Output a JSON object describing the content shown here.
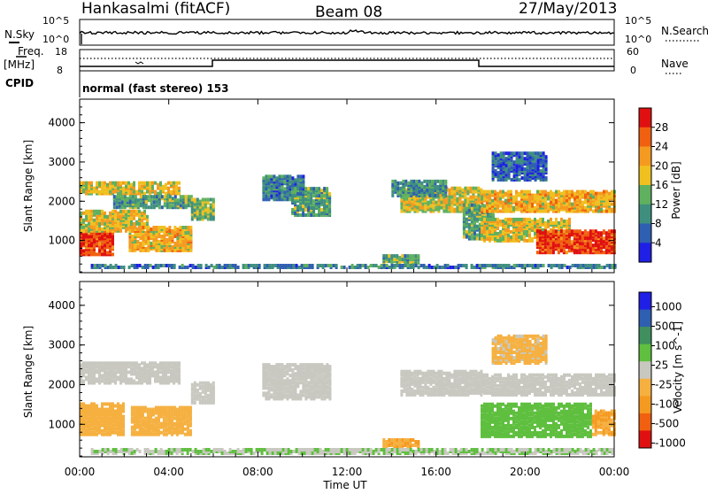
{
  "header": {
    "station": "Hankasalmi (fitACF)",
    "beam": "Beam 08",
    "date": "27/May/2013"
  },
  "top_strip": {
    "left_label": "N.Sky",
    "left_ticks": [
      "10^5",
      "10^0"
    ],
    "right_ticks": [
      "10^5",
      "10^0"
    ],
    "right_label": "N.Search"
  },
  "freq_strip": {
    "label_line1": "Freq.",
    "label_line2": "[MHz]",
    "left_ticks": [
      "18",
      "8"
    ],
    "right_ticks": [
      "60",
      "0"
    ],
    "right_label": "Nave",
    "cpid_label": "CPID"
  },
  "mode_text": "normal (fast stereo) 153",
  "x_axis": {
    "ticks": [
      "00:00",
      "04:00",
      "08:00",
      "12:00",
      "16:00",
      "20:00",
      "00:00"
    ],
    "label": "Time UT"
  },
  "colors": {
    "power": [
      "#1f1fe6",
      "#2f5fb0",
      "#3f8f7f",
      "#5fb05f",
      "#f0c020",
      "#f59a20",
      "#f06010",
      "#e01010"
    ],
    "velocity": [
      "#e01010",
      "#f06010",
      "#f59a20",
      "#f5b040",
      "#c8c8c0",
      "#5fbf3f",
      "#3f8f5f",
      "#2f5fb0",
      "#1f1fe6"
    ]
  },
  "chart_data": [
    {
      "type": "heatmap",
      "title": "Power",
      "ylabel": "Slant Range [km]",
      "xlabel": "Time UT",
      "x_range_hours": [
        0,
        24
      ],
      "ylim": [
        180,
        4600
      ],
      "y_ticks": [
        1000,
        2000,
        3000,
        4000
      ],
      "colorbar": {
        "label": "Power [dB]",
        "ticks": [
          "4",
          "8",
          "12",
          "16",
          "20",
          "24",
          "28"
        ],
        "range": [
          0,
          32
        ]
      },
      "regions": [
        {
          "t0": 0.0,
          "t1": 1.5,
          "r0": 600,
          "r1": 1200,
          "value": 28
        },
        {
          "t0": 0.0,
          "t1": 3.0,
          "r0": 1200,
          "r1": 1700,
          "value": 18
        },
        {
          "t0": 0.0,
          "t1": 4.5,
          "r0": 2150,
          "r1": 2450,
          "value": 18
        },
        {
          "t0": 1.5,
          "t1": 5.0,
          "r0": 1800,
          "r1": 2100,
          "value": 12
        },
        {
          "t0": 2.2,
          "t1": 5.0,
          "r0": 700,
          "r1": 1300,
          "value": 20
        },
        {
          "t0": 5.0,
          "t1": 6.0,
          "r0": 1500,
          "r1": 2000,
          "value": 14
        },
        {
          "t0": 8.2,
          "t1": 10.0,
          "r0": 2000,
          "r1": 2600,
          "value": 8
        },
        {
          "t0": 9.5,
          "t1": 11.2,
          "r0": 1600,
          "r1": 2300,
          "value": 12
        },
        {
          "t0": 13.6,
          "t1": 15.2,
          "r0": 380,
          "r1": 580,
          "value": 12
        },
        {
          "t0": 14.4,
          "t1": 18.0,
          "r0": 1700,
          "r1": 2300,
          "value": 18
        },
        {
          "t0": 14.0,
          "t1": 16.5,
          "r0": 2100,
          "r1": 2500,
          "value": 10
        },
        {
          "t0": 17.2,
          "t1": 18.6,
          "r0": 1000,
          "r1": 1900,
          "value": 12
        },
        {
          "t0": 18.0,
          "t1": 24.0,
          "r0": 1700,
          "r1": 2200,
          "value": 20
        },
        {
          "t0": 18.0,
          "t1": 22.0,
          "r0": 950,
          "r1": 1500,
          "value": 18
        },
        {
          "t0": 20.5,
          "t1": 24.0,
          "r0": 650,
          "r1": 1200,
          "value": 28
        },
        {
          "t0": 18.5,
          "t1": 21.0,
          "r0": 2500,
          "r1": 3200,
          "value": 6
        },
        {
          "t0": 0.5,
          "t1": 24.0,
          "r0": 180,
          "r1": 320,
          "value": 8
        }
      ]
    },
    {
      "type": "heatmap",
      "title": "Velocity",
      "ylabel": "Slant Range [km]",
      "xlabel": "Time UT",
      "x_range_hours": [
        0,
        24
      ],
      "ylim": [
        180,
        4600
      ],
      "y_ticks": [
        1000,
        2000,
        3000,
        4000
      ],
      "colorbar": {
        "label": "Velocity [m s^-1]",
        "ticks": [
          "1000",
          "500",
          "100",
          "25",
          "-25",
          "-100",
          "-500",
          "-1000"
        ],
        "range": [
          -1200,
          1200
        ]
      },
      "regions": [
        {
          "t0": 0.0,
          "t1": 4.5,
          "r0": 2000,
          "r1": 2500,
          "value": 0
        },
        {
          "t0": 0.0,
          "t1": 2.0,
          "r0": 700,
          "r1": 1500,
          "value": -300
        },
        {
          "t0": 2.3,
          "t1": 5.0,
          "r0": 700,
          "r1": 1400,
          "value": -300
        },
        {
          "t0": 5.0,
          "t1": 6.0,
          "r0": 1500,
          "r1": 2000,
          "value": 0
        },
        {
          "t0": 8.2,
          "t1": 11.2,
          "r0": 1600,
          "r1": 2500,
          "value": 0
        },
        {
          "t0": 13.6,
          "t1": 15.2,
          "r0": 380,
          "r1": 580,
          "value": -400
        },
        {
          "t0": 14.4,
          "t1": 18.0,
          "r0": 1700,
          "r1": 2300,
          "value": 0
        },
        {
          "t0": 18.0,
          "t1": 24.0,
          "r0": 1700,
          "r1": 2200,
          "value": 0
        },
        {
          "t0": 18.0,
          "t1": 23.0,
          "r0": 650,
          "r1": 1500,
          "value": 300
        },
        {
          "t0": 23.0,
          "t1": 24.0,
          "r0": 700,
          "r1": 1300,
          "value": -400
        },
        {
          "t0": 18.5,
          "t1": 21.0,
          "r0": 2500,
          "r1": 3200,
          "value": -200
        },
        {
          "t0": 0.5,
          "t1": 24.0,
          "r0": 180,
          "r1": 320,
          "value": 120
        }
      ]
    }
  ]
}
